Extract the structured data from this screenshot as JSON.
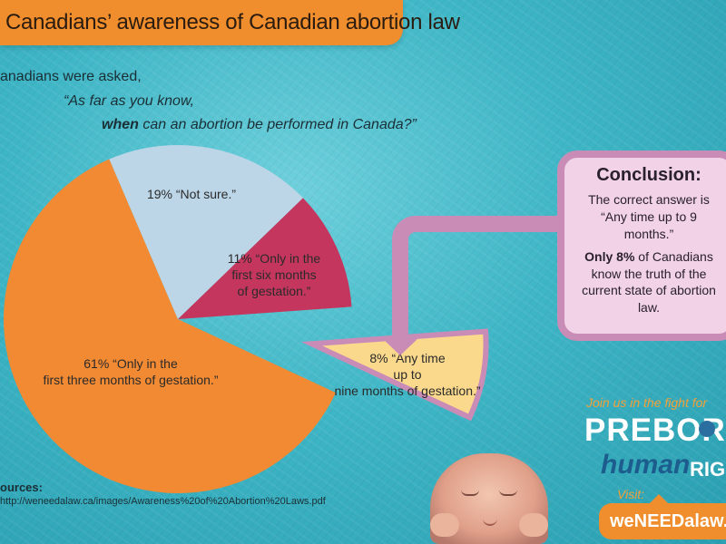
{
  "title": "Canadians’ awareness of Canadian abortion law",
  "question": {
    "intro": "anadians were asked,",
    "line1": "“As far as you know,",
    "line2_bold": "when",
    "line2_rest": " can an abortion be performed in Canada?”"
  },
  "chart_data": {
    "type": "pie",
    "slices": [
      {
        "label": "61% “Only in the first three months of gestation.”",
        "value": 61,
        "color": "#f28a33"
      },
      {
        "label": "19% “Not sure.”",
        "value": 19,
        "color": "#bcd6e8"
      },
      {
        "label": "11% “Only in the first six months of gestation.”",
        "value": 11,
        "color": "#c4365e"
      },
      {
        "label": "8% “Any time up to nine months of gestation.”",
        "value": 8,
        "color": "#fbd98c",
        "exploded": true
      }
    ]
  },
  "slice_labels": {
    "s61_line1": "61% “Only in the",
    "s61_line2": "first three months of gestation.”",
    "s19": "19% “Not sure.”",
    "s11_line1": "11% “Only in the",
    "s11_line2": "first six months",
    "s11_line3": "of gestation.”",
    "s8_line1": "8% “Any time",
    "s8_line2": "up to",
    "s8_line3": "nine months of gestation.”"
  },
  "conclusion": {
    "heading": "Conclusion:",
    "p1": "The correct answer is “Any time up to 9 months.”",
    "p2_bold": "Only 8%",
    "p2_rest": " of Canadians know the truth of the current state of abortion law."
  },
  "sources": {
    "heading": "ources:",
    "url": "http://weneedalaw.ca/images/Awareness%20of%20Abortion%20Laws.pdf"
  },
  "brand": {
    "join": "Join us in the fight for",
    "preborn": "PREBOR",
    "human": "human",
    "rights": "RIGH",
    "visit": "Visit:",
    "url": "weNEEDalaw.ca"
  },
  "colors": {
    "background": "#3fb6c6",
    "accent_orange": "#f08d2c",
    "callout_pink": "#c98cb6",
    "callout_fill": "#f1d2e6"
  }
}
